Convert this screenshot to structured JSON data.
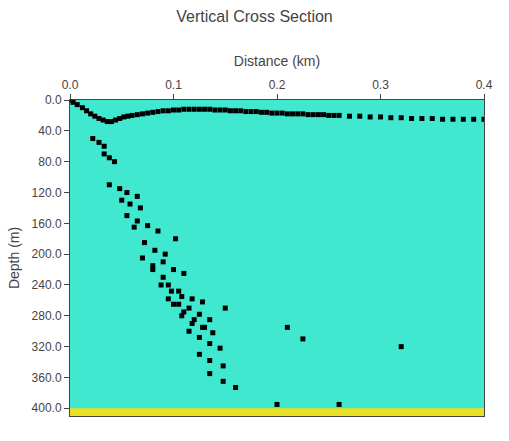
{
  "chart_data": {
    "type": "scatter",
    "title": "Vertical Cross Section",
    "x_label": "Distance (km)",
    "y_label": "Depth (m)",
    "xlim": [
      0.0,
      0.4
    ],
    "xticks": [
      {
        "value": 0.0,
        "label": "0.0"
      },
      0.1,
      0.2,
      0.3,
      0.4
    ],
    "ylim": [
      410.0,
      0.0
    ],
    "yticks": [
      {
        "value": 0.0,
        "label": "0.0"
      },
      {
        "value": 40.0,
        "label": "40.0"
      },
      {
        "value": 80.0,
        "label": "80.0"
      },
      {
        "value": 120.0,
        "label": "120.0"
      },
      {
        "value": 160.0,
        "label": "160.0"
      },
      {
        "value": 200.0,
        "label": "200.0"
      },
      {
        "value": 240.0,
        "label": "240.0"
      },
      {
        "value": 280.0,
        "label": "280.0"
      },
      {
        "value": 320.0,
        "label": "320.0"
      },
      {
        "value": 360.0,
        "label": "360.0"
      },
      {
        "value": 400.0,
        "label": "400.0"
      }
    ],
    "grid": false,
    "color": "#000000",
    "marker": "square",
    "band": {
      "y": 400.0,
      "height": 15.0,
      "color": "#e8e020"
    },
    "x": [
      0.0,
      0.003,
      0.007,
      0.012,
      0.016,
      0.02,
      0.024,
      0.028,
      0.032,
      0.036,
      0.04,
      0.044,
      0.048,
      0.052,
      0.056,
      0.06,
      0.065,
      0.07,
      0.075,
      0.08,
      0.085,
      0.09,
      0.095,
      0.1,
      0.105,
      0.11,
      0.115,
      0.12,
      0.125,
      0.13,
      0.135,
      0.14,
      0.145,
      0.15,
      0.155,
      0.16,
      0.165,
      0.17,
      0.175,
      0.18,
      0.185,
      0.19,
      0.195,
      0.2,
      0.205,
      0.21,
      0.215,
      0.22,
      0.225,
      0.23,
      0.235,
      0.24,
      0.245,
      0.25,
      0.255,
      0.26,
      0.27,
      0.28,
      0.29,
      0.3,
      0.31,
      0.32,
      0.33,
      0.34,
      0.35,
      0.36,
      0.37,
      0.38,
      0.39,
      0.4,
      0.022,
      0.028,
      0.033,
      0.033,
      0.038,
      0.043,
      0.038,
      0.048,
      0.055,
      0.065,
      0.05,
      0.058,
      0.068,
      0.055,
      0.065,
      0.075,
      0.085,
      0.062,
      0.072,
      0.082,
      0.092,
      0.102,
      0.07,
      0.08,
      0.09,
      0.1,
      0.11,
      0.08,
      0.09,
      0.095,
      0.105,
      0.088,
      0.098,
      0.108,
      0.118,
      0.128,
      0.095,
      0.105,
      0.115,
      0.125,
      0.135,
      0.1,
      0.11,
      0.12,
      0.13,
      0.108,
      0.118,
      0.128,
      0.138,
      0.115,
      0.125,
      0.135,
      0.145,
      0.125,
      0.135,
      0.148,
      0.135,
      0.148,
      0.16,
      0.21,
      0.225,
      0.26,
      0.32,
      0.15,
      0.2
    ],
    "values": [
      0.0,
      3.0,
      6.0,
      10.0,
      14.0,
      18.0,
      21.0,
      24.0,
      26.0,
      28.0,
      28.0,
      26.0,
      24.0,
      22.0,
      21.0,
      20.0,
      19.0,
      18.0,
      17.0,
      16.0,
      15.0,
      14.0,
      14.0,
      13.0,
      13.0,
      12.0,
      12.0,
      12.0,
      12.0,
      12.0,
      12.0,
      13.0,
      13.0,
      13.0,
      14.0,
      14.0,
      14.0,
      15.0,
      15.0,
      15.0,
      16.0,
      16.0,
      17.0,
      17.0,
      17.0,
      18.0,
      18.0,
      18.0,
      18.0,
      19.0,
      19.0,
      19.0,
      19.0,
      20.0,
      20.0,
      20.0,
      21.0,
      21.0,
      22.0,
      22.0,
      23.0,
      23.0,
      24.0,
      24.0,
      24.0,
      25.0,
      25.0,
      25.0,
      25.0,
      25.0,
      50.0,
      55.0,
      60.0,
      70.0,
      75.0,
      80.0,
      110.0,
      115.0,
      120.0,
      125.0,
      130.0,
      135.0,
      140.0,
      150.0,
      157.0,
      163.0,
      170.0,
      165.0,
      185.0,
      195.0,
      200.0,
      180.0,
      205.0,
      215.0,
      210.0,
      220.0,
      225.0,
      220.0,
      230.0,
      240.0,
      248.0,
      240.0,
      248.0,
      255.0,
      258.0,
      262.0,
      258.0,
      265.0,
      270.0,
      278.0,
      285.0,
      265.0,
      275.0,
      285.0,
      295.0,
      280.0,
      290.0,
      295.0,
      302.0,
      300.0,
      308.0,
      316.0,
      322.0,
      330.0,
      338.0,
      345.0,
      355.0,
      365.0,
      373.0,
      295.0,
      310.0,
      395.0,
      320.0,
      270.0,
      395.0
    ]
  }
}
